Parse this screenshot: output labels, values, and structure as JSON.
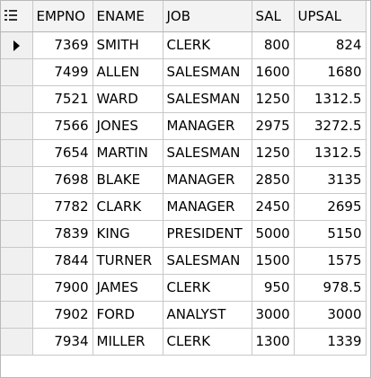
{
  "grid": {
    "columns": [
      "EMPNO",
      "ENAME",
      "JOB",
      "SAL",
      "UPSAL"
    ],
    "column_align": [
      "right",
      "left",
      "left",
      "right",
      "right"
    ],
    "header_icon": "grid-menu-icon",
    "current_row_icon": "row-pointer-icon",
    "current_row_index": 0,
    "rows": [
      [
        "7369",
        "SMITH",
        "CLERK",
        "800",
        "824"
      ],
      [
        "7499",
        "ALLEN",
        "SALESMAN",
        "1600",
        "1680"
      ],
      [
        "7521",
        "WARD",
        "SALESMAN",
        "1250",
        "1312.5"
      ],
      [
        "7566",
        "JONES",
        "MANAGER",
        "2975",
        "3272.5"
      ],
      [
        "7654",
        "MARTIN",
        "SALESMAN",
        "1250",
        "1312.5"
      ],
      [
        "7698",
        "BLAKE",
        "MANAGER",
        "2850",
        "3135"
      ],
      [
        "7782",
        "CLARK",
        "MANAGER",
        "2450",
        "2695"
      ],
      [
        "7839",
        "KING",
        "PRESIDENT",
        "5000",
        "5150"
      ],
      [
        "7844",
        "TURNER",
        "SALESMAN",
        "1500",
        "1575"
      ],
      [
        "7900",
        "JAMES",
        "CLERK",
        "950",
        "978.5"
      ],
      [
        "7902",
        "FORD",
        "ANALYST",
        "3000",
        "3000"
      ],
      [
        "7934",
        "MILLER",
        "CLERK",
        "1300",
        "1339"
      ]
    ]
  },
  "colors": {
    "header_bg": "#f3f3f3",
    "selector_bg": "#f0f0f0",
    "grid_line": "#c8c8c8"
  }
}
